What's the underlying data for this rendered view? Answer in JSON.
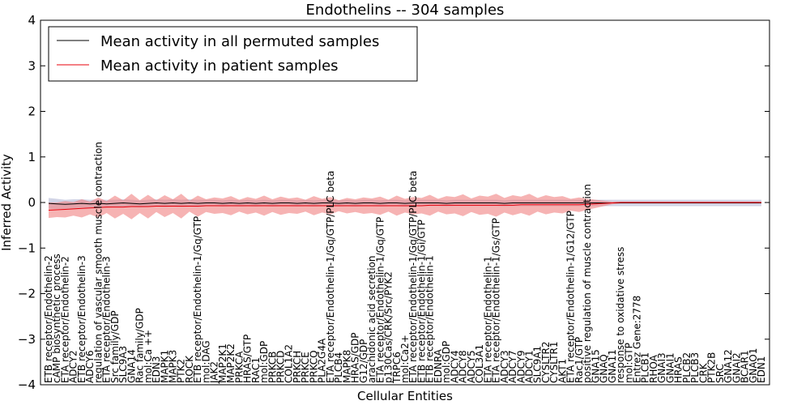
{
  "chart_data": {
    "type": "line",
    "title": "Endothelins -- 304 samples",
    "xlabel": "Cellular Entities",
    "ylabel": "Inferred Activity",
    "ylim": [
      -4,
      4
    ],
    "yticks": [
      -4,
      -3,
      -2,
      -1,
      0,
      1,
      2,
      3,
      4
    ],
    "ytick_labels": [
      "−4",
      "−3",
      "−2",
      "−1",
      "0",
      "1",
      "2",
      "3",
      "4"
    ],
    "grid": false,
    "legend_position": "top-left",
    "colors": {
      "permuted": "#000000",
      "patient": "#e8000b",
      "permuted_band": "#9aa0c8",
      "patient_band": "#f08080"
    },
    "categories": [
      "ETB receptor/Endothelin-2",
      "cAMP biosynthetic process",
      "ETA receptor/Endothelin-2",
      "ADCY2",
      "ETB receptor/Endothelin-3",
      "ADCY6",
      "regulation of vascular smooth muscle contraction",
      "ETA receptor/Endothelin-3",
      "Src family/GDP",
      "SLC9A3",
      "GNA14",
      "Rac family/GDP",
      "mol:Ca ++",
      "EDN3",
      "MAPK1",
      "MAPK3",
      "PTK2",
      "ROCK",
      "ETB receptor/Endothelin-1/Gq/GTP",
      "mol:DAG",
      "JAK2",
      "MAP2K1",
      "MAP2K2",
      "PRKCA",
      "HRAS/GTP",
      "RAC1",
      "mol:GDP",
      "PRKCB",
      "PRKCD",
      "COL1A2",
      "PRKCH",
      "PRKCE",
      "PRKCQ",
      "PLA2G4A",
      "ETA receptor/Endothelin-1/Gq/GTP/PLC beta",
      "PLCB4",
      "MAPK8",
      "HRAS/GDP",
      "G12/GDP",
      "arachidonic acid secretion",
      "ETA receptor/Endothelin-1/Gq/GTP",
      "p130Cas/CRK/Src/PYK2",
      "TRPC6",
      "mol:Ca2+",
      "ETA receptor/Endothelin-1/Gq/GTP/PLC beta",
      "ETB receptor/Endothelin-1/Gi/GTP",
      "ETB receptor/Endothelin-1",
      "EDNRA",
      "mol:GDP",
      "ADCY4",
      "ADCY8",
      "ADCY5",
      "COL3A1",
      "ETA receptor/Endothelin-1",
      "ETA receptor/Endothelin-1/Gs/GTP",
      "ADCY3",
      "ADCY7",
      "ADCY9",
      "ADCY1",
      "SLC9A1",
      "CYSLTR2",
      "CYSLTR1",
      "AKT1",
      "ETA receptor/Endothelin-1/G12/GTP",
      "Rac1/GTP",
      "positive regulation of muscle contraction",
      "GNA15",
      "GNAQ",
      "GNA11",
      "response to oxidative stress",
      "mol:GTP",
      "Entrez Gene:2778",
      "PLCB1",
      "RHOA",
      "GNAI3",
      "GNAI1",
      "HRAS",
      "PLCB2",
      "PLCB3",
      "CRK",
      "PTK2B",
      "SRC",
      "GNA12",
      "GNAI2",
      "BCAR1",
      "GNAO1",
      "EDN1"
    ],
    "series": [
      {
        "name": "Mean activity in all permuted samples",
        "values": [
          -0.02,
          -0.03,
          -0.04,
          -0.03,
          -0.02,
          -0.03,
          -0.02,
          -0.03,
          -0.02,
          -0.01,
          -0.02,
          -0.03,
          -0.02,
          -0.01,
          -0.02,
          -0.01,
          -0.02,
          -0.01,
          -0.02,
          -0.01,
          -0.01,
          -0.02,
          -0.01,
          -0.02,
          -0.01,
          -0.02,
          -0.01,
          -0.02,
          -0.01,
          -0.01,
          -0.02,
          -0.01,
          -0.02,
          -0.01,
          -0.01,
          -0.02,
          -0.01,
          -0.02,
          -0.01,
          -0.01,
          -0.02,
          -0.01,
          -0.01,
          -0.02,
          -0.01,
          -0.01,
          -0.01,
          -0.01,
          -0.02,
          -0.01,
          -0.01,
          -0.01,
          -0.01,
          -0.01,
          -0.01,
          -0.02,
          -0.01,
          -0.01,
          -0.01,
          -0.01,
          -0.01,
          -0.01,
          -0.01,
          -0.01,
          -0.01,
          -0.01,
          -0.01,
          -0.01,
          -0.01,
          -0.01,
          -0.01,
          -0.01,
          -0.01,
          -0.01,
          -0.01,
          -0.01,
          -0.01,
          -0.01,
          -0.01,
          -0.01,
          -0.01,
          -0.01,
          -0.01,
          -0.01,
          -0.01,
          -0.01,
          -0.01
        ],
        "band": [
          0.12,
          0.11,
          0.1,
          0.1,
          0.09,
          0.09,
          0.09,
          0.09,
          0.08,
          0.08,
          0.08,
          0.08,
          0.08,
          0.08,
          0.08,
          0.08,
          0.08,
          0.08,
          0.08,
          0.07,
          0.07,
          0.07,
          0.07,
          0.07,
          0.07,
          0.07,
          0.07,
          0.07,
          0.07,
          0.07,
          0.07,
          0.07,
          0.07,
          0.07,
          0.07,
          0.07,
          0.07,
          0.07,
          0.07,
          0.07,
          0.07,
          0.07,
          0.07,
          0.07,
          0.07,
          0.07,
          0.07,
          0.07,
          0.07,
          0.07,
          0.07,
          0.07,
          0.07,
          0.07,
          0.07,
          0.07,
          0.07,
          0.07,
          0.07,
          0.07,
          0.07,
          0.07,
          0.07,
          0.07,
          0.07,
          0.07,
          0.07,
          0.07,
          0.07,
          0.07,
          0.07,
          0.07,
          0.07,
          0.07,
          0.07,
          0.07,
          0.07,
          0.07,
          0.07,
          0.07,
          0.07,
          0.07,
          0.07,
          0.07,
          0.07,
          0.07,
          0.07
        ]
      },
      {
        "name": "Mean activity in patient samples",
        "values": [
          -0.17,
          -0.16,
          -0.15,
          -0.14,
          -0.13,
          -0.12,
          -0.11,
          -0.1,
          -0.1,
          -0.1,
          -0.09,
          -0.09,
          -0.09,
          -0.08,
          -0.08,
          -0.08,
          -0.08,
          -0.08,
          -0.08,
          -0.07,
          -0.07,
          -0.07,
          -0.07,
          -0.07,
          -0.07,
          -0.07,
          -0.07,
          -0.07,
          -0.07,
          -0.07,
          -0.07,
          -0.07,
          -0.07,
          -0.07,
          -0.07,
          -0.07,
          -0.07,
          -0.07,
          -0.07,
          -0.07,
          -0.07,
          -0.07,
          -0.07,
          -0.07,
          -0.07,
          -0.07,
          -0.06,
          -0.06,
          -0.06,
          -0.06,
          -0.06,
          -0.06,
          -0.06,
          -0.06,
          -0.06,
          -0.06,
          -0.06,
          -0.05,
          -0.05,
          -0.05,
          -0.05,
          -0.05,
          -0.05,
          -0.05,
          -0.05,
          -0.04,
          -0.03,
          -0.02,
          -0.01,
          0,
          0,
          0,
          0,
          0,
          0,
          0,
          0,
          0,
          0,
          0,
          0,
          0,
          0,
          0,
          0,
          0,
          0
        ],
        "band": [
          0.17,
          0.16,
          0.18,
          0.15,
          0.2,
          0.14,
          0.22,
          0.13,
          0.25,
          0.15,
          0.28,
          0.14,
          0.26,
          0.13,
          0.24,
          0.15,
          0.27,
          0.12,
          0.23,
          0.14,
          0.18,
          0.16,
          0.21,
          0.13,
          0.19,
          0.15,
          0.22,
          0.14,
          0.2,
          0.16,
          0.18,
          0.13,
          0.21,
          0.15,
          0.19,
          0.12,
          0.17,
          0.14,
          0.18,
          0.16,
          0.2,
          0.13,
          0.22,
          0.15,
          0.19,
          0.17,
          0.23,
          0.14,
          0.2,
          0.18,
          0.24,
          0.15,
          0.21,
          0.19,
          0.25,
          0.16,
          0.22,
          0.18,
          0.24,
          0.15,
          0.21,
          0.17,
          0.19,
          0.13,
          0.16,
          0.12,
          0.09,
          0.06,
          0.03,
          0.02,
          0.02,
          0.02,
          0.02,
          0.02,
          0.02,
          0.02,
          0.02,
          0.02,
          0.02,
          0.02,
          0.02,
          0.02,
          0.02,
          0.02,
          0.02,
          0.02,
          0.02
        ]
      }
    ]
  }
}
